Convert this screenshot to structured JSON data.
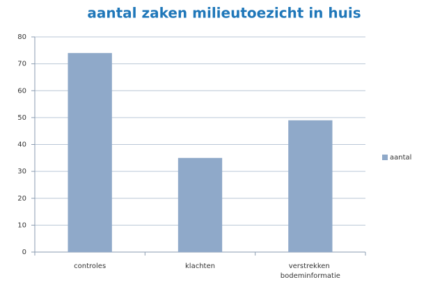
{
  "chart_data": {
    "type": "bar",
    "title": "aantal zaken milieutoezicht in huis",
    "categories": [
      "controles",
      "klachten",
      "verstrekken bodeminformatie"
    ],
    "series": [
      {
        "name": "aantal",
        "color": "#8fa9c9",
        "values": [
          74,
          35,
          49
        ]
      }
    ],
    "ylim": [
      0,
      80
    ],
    "yticks": [
      0,
      10,
      20,
      30,
      40,
      50,
      60,
      70,
      80
    ],
    "grid": true,
    "legend": "right"
  }
}
